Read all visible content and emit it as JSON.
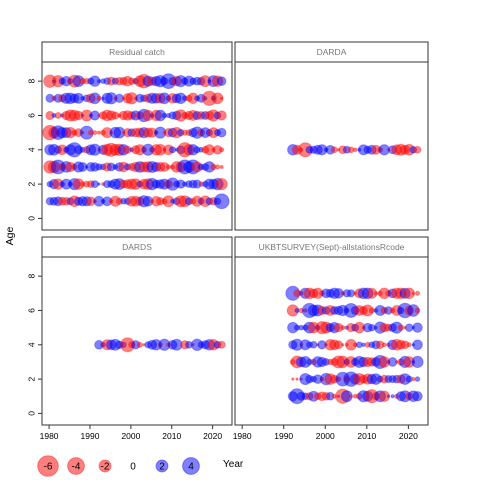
{
  "chart_data": {
    "type": "scatter",
    "subtype": "bubble-residuals",
    "ylabel": "Age",
    "xlabel_legend": "Year",
    "xlim": [
      1979,
      2024
    ],
    "ylim": [
      -0.5,
      9
    ],
    "xticks": [
      1980,
      1990,
      2000,
      2010,
      2020
    ],
    "yticks": [
      0,
      2,
      4,
      6,
      8
    ],
    "grid": false,
    "colors": {
      "positive": "#0000ff",
      "negative": "#ff0000"
    },
    "legend": {
      "position": "bottom-left",
      "values": [
        -6,
        -4,
        -2,
        0,
        2,
        4
      ],
      "labels": [
        "-6",
        "-4",
        "-2",
        "0",
        "2",
        "4"
      ],
      "title": "Year"
    },
    "panels": [
      {
        "id": "catch",
        "title": "Residual catch",
        "ages": [
          1,
          2,
          3,
          4,
          5,
          6,
          7,
          8
        ],
        "years": [
          1980,
          2022
        ]
      },
      {
        "id": "darda",
        "title": "DARDA",
        "ages": [
          4
        ],
        "years": [
          1992,
          2022
        ]
      },
      {
        "id": "dards",
        "title": "DARDS",
        "ages": [
          4
        ],
        "years": [
          1992,
          2022
        ],
        "missing_years": [
          2012
        ]
      },
      {
        "id": "ukbts",
        "title": "UKBTSURVEY(Sept)-allstationsRcode",
        "ages": [
          1,
          2,
          3,
          4,
          5,
          6,
          7
        ],
        "years": [
          1992,
          2022
        ]
      }
    ]
  },
  "panel_titles": {
    "catch": "Residual catch",
    "darda": "DARDA",
    "dards": "DARDS",
    "ukbts": "UKBTSURVEY(Sept)-allstationsRcode"
  },
  "axis_labels": {
    "y": "Age",
    "legend_title": "Year"
  }
}
